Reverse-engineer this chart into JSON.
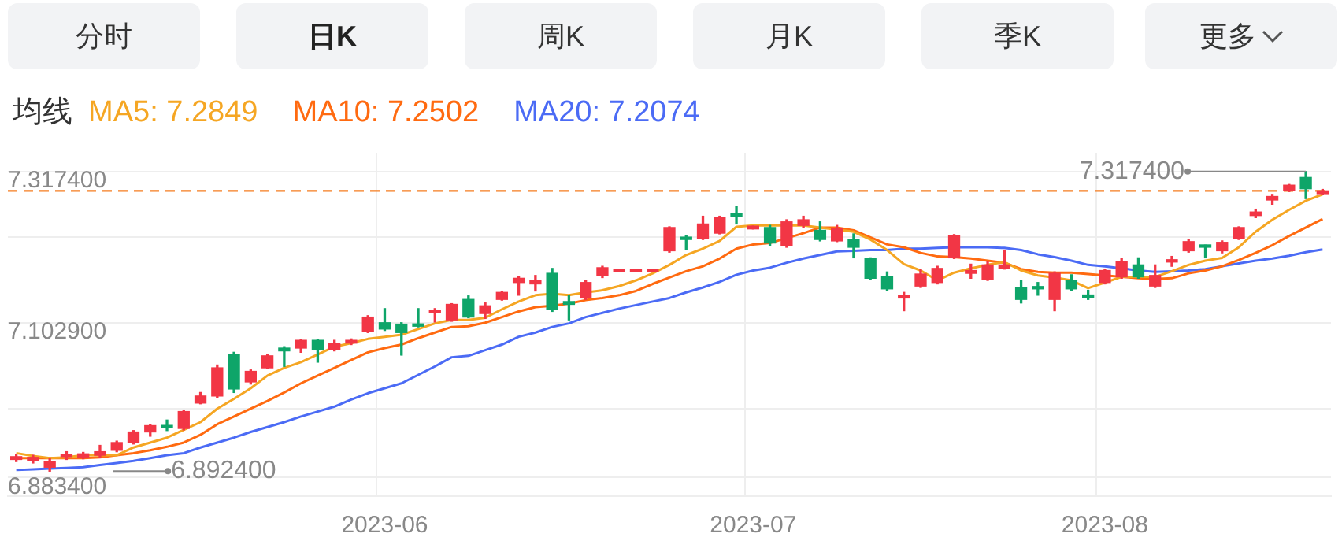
{
  "chart_data": {
    "type": "candlestick",
    "legend_title": "均线",
    "legend": "top left",
    "grid": true,
    "categories": [
      null,
      null,
      null,
      null,
      null,
      null,
      null,
      null,
      null,
      null,
      null,
      null,
      null,
      null,
      null,
      null,
      null,
      null,
      null,
      null,
      null,
      null,
      "2023-06",
      null,
      null,
      null,
      null,
      null,
      null,
      null,
      null,
      null,
      null,
      null,
      null,
      null,
      null,
      null,
      null,
      null,
      null,
      null,
      null,
      null,
      "2023-07",
      null,
      null,
      null,
      null,
      null,
      null,
      null,
      null,
      null,
      null,
      null,
      null,
      null,
      null,
      null,
      null,
      null,
      null,
      null,
      null,
      "2023-08",
      null,
      null,
      null,
      null,
      null,
      null,
      null,
      null,
      null,
      null,
      null,
      null,
      null
    ],
    "ohlc": [
      [
        6.909,
        6.916,
        6.906,
        6.913
      ],
      [
        6.907,
        6.915,
        6.904,
        6.912
      ],
      [
        6.898,
        6.911,
        6.8924,
        6.906
      ],
      [
        6.913,
        6.92,
        6.909,
        6.916
      ],
      [
        6.912,
        6.919,
        6.91,
        6.917
      ],
      [
        6.915,
        6.929,
        6.912,
        6.92
      ],
      [
        6.922,
        6.935,
        6.92,
        6.933
      ],
      [
        6.933,
        6.95,
        6.931,
        6.948
      ],
      [
        6.948,
        6.959,
        6.942,
        6.957
      ],
      [
        6.957,
        6.965,
        6.95,
        6.954
      ],
      [
        6.953,
        6.978,
        6.951,
        6.977
      ],
      [
        6.989,
        7.004,
        6.988,
        6.999
      ],
      [
        6.999,
        7.043,
        6.997,
        7.039
      ],
      [
        7.058,
        7.061,
        7.004,
        7.009
      ],
      [
        7.019,
        7.036,
        7.016,
        7.034
      ],
      [
        7.039,
        7.058,
        7.038,
        7.056
      ],
      [
        7.067,
        7.069,
        7.041,
        7.063
      ],
      [
        7.067,
        7.079,
        7.061,
        7.078
      ],
      [
        7.078,
        7.079,
        7.047,
        7.065
      ],
      [
        7.065,
        7.078,
        7.063,
        7.074
      ],
      [
        7.074,
        7.08,
        7.072,
        7.078
      ],
      [
        7.091,
        7.113,
        7.089,
        7.111
      ],
      [
        7.103,
        7.123,
        7.092,
        7.094
      ],
      [
        7.101,
        7.103,
        7.057,
        7.089
      ],
      [
        7.101,
        7.123,
        7.097,
        7.098
      ],
      [
        7.117,
        7.123,
        7.104,
        7.12
      ],
      [
        7.107,
        7.13,
        7.105,
        7.129
      ],
      [
        7.136,
        7.141,
        7.11,
        7.111
      ],
      [
        7.116,
        7.131,
        7.109,
        7.127
      ],
      [
        7.136,
        7.147,
        7.135,
        7.146
      ],
      [
        7.16,
        7.168,
        7.142,
        7.166
      ],
      [
        7.158,
        7.17,
        7.148,
        7.163
      ],
      [
        7.173,
        7.18,
        7.119,
        7.122
      ],
      [
        7.133,
        7.142,
        7.107,
        7.129
      ],
      [
        7.138,
        7.163,
        7.136,
        7.16
      ],
      [
        7.17,
        7.183,
        7.167,
        7.181
      ],
      [
        7.175,
        7.177,
        7.175,
        7.177
      ],
      [
        7.175,
        7.177,
        7.175,
        7.177
      ],
      [
        7.175,
        7.177,
        7.175,
        7.177
      ],
      [
        7.205,
        7.239,
        7.203,
        7.238
      ],
      [
        7.224,
        7.226,
        7.207,
        7.221
      ],
      [
        7.223,
        7.254,
        7.221,
        7.243
      ],
      [
        7.23,
        7.254,
        7.229,
        7.252
      ],
      [
        7.257,
        7.268,
        7.243,
        7.254
      ],
      [
        7.236,
        7.24,
        7.236,
        7.24
      ],
      [
        7.238,
        7.241,
        7.212,
        7.216
      ],
      [
        7.212,
        7.249,
        7.21,
        7.246
      ],
      [
        7.241,
        7.254,
        7.238,
        7.249
      ],
      [
        7.234,
        7.246,
        7.219,
        7.221
      ],
      [
        7.219,
        7.241,
        7.218,
        7.236
      ],
      [
        7.221,
        7.229,
        7.195,
        7.21
      ],
      [
        7.194,
        7.195,
        7.164,
        7.166
      ],
      [
        7.168,
        7.175,
        7.149,
        7.151
      ],
      [
        7.138,
        7.146,
        7.12,
        7.142
      ],
      [
        7.155,
        7.179,
        7.153,
        7.172
      ],
      [
        7.16,
        7.183,
        7.158,
        7.18
      ],
      [
        7.195,
        7.228,
        7.194,
        7.227
      ],
      [
        7.173,
        7.186,
        7.166,
        7.177
      ],
      [
        7.164,
        7.19,
        7.163,
        7.185
      ],
      [
        7.18,
        7.206,
        7.179,
        7.185
      ],
      [
        7.153,
        7.163,
        7.131,
        7.136
      ],
      [
        7.153,
        7.16,
        7.142,
        7.151
      ],
      [
        7.136,
        7.175,
        7.12,
        7.173
      ],
      [
        7.163,
        7.171,
        7.149,
        7.151
      ],
      [
        7.142,
        7.149,
        7.136,
        7.139
      ],
      [
        7.16,
        7.179,
        7.158,
        7.177
      ],
      [
        7.168,
        7.194,
        7.166,
        7.19
      ],
      [
        7.185,
        7.195,
        7.166,
        7.168
      ],
      [
        7.155,
        7.185,
        7.153,
        7.17
      ],
      [
        7.189,
        7.197,
        7.183,
        7.192
      ],
      [
        7.205,
        7.221,
        7.203,
        7.218
      ],
      [
        7.212,
        7.213,
        7.195,
        7.21
      ],
      [
        7.205,
        7.219,
        7.202,
        7.217
      ],
      [
        7.223,
        7.239,
        7.221,
        7.238
      ],
      [
        7.255,
        7.264,
        7.252,
        7.26
      ],
      [
        7.277,
        7.285,
        7.271,
        7.282
      ],
      [
        7.29,
        7.299,
        7.289,
        7.298
      ],
      [
        7.309,
        7.3174,
        7.279,
        7.293
      ],
      [
        7.286,
        7.292,
        7.285,
        7.29
      ]
    ],
    "colors": [
      "#f23645",
      "#f23645",
      "#f23645",
      "#f23645",
      "#f23645",
      "#f23645",
      "#f23645",
      "#f23645",
      "#f23645",
      "#0ea569",
      "#f23645",
      "#f23645",
      "#f23645",
      "#0ea569",
      "#f23645",
      "#f23645",
      "#0ea569",
      "#f23645",
      "#0ea569",
      "#f23645",
      "#f23645",
      "#f23645",
      "#0ea569",
      "#0ea569",
      "#0ea569",
      "#f23645",
      "#f23645",
      "#0ea569",
      "#f23645",
      "#f23645",
      "#f23645",
      "#f23645",
      "#0ea569",
      "#0ea569",
      "#f23645",
      "#f23645",
      "#f23645",
      "#f23645",
      "#f23645",
      "#f23645",
      "#0ea569",
      "#f23645",
      "#f23645",
      "#0ea569",
      "#f23645",
      "#0ea569",
      "#f23645",
      "#f23645",
      "#0ea569",
      "#f23645",
      "#0ea569",
      "#0ea569",
      "#0ea569",
      "#f23645",
      "#f23645",
      "#f23645",
      "#f23645",
      "#f23645",
      "#f23645",
      "#f23645",
      "#0ea569",
      "#0ea569",
      "#f23645",
      "#0ea569",
      "#0ea569",
      "#f23645",
      "#f23645",
      "#0ea569",
      "#f23645",
      "#f23645",
      "#f23645",
      "#0ea569",
      "#f23645",
      "#f23645",
      "#f23645",
      "#f23645",
      "#f23645",
      "#0ea569",
      "#f23645"
    ],
    "series": [
      {
        "name": "MA5: 7.2849",
        "type": "line",
        "color": "#f5a623",
        "values": [
          6.918,
          6.914,
          6.911,
          6.912,
          6.915,
          6.915,
          6.915,
          6.926,
          6.933,
          6.94,
          6.951,
          6.962,
          6.981,
          6.995,
          7.01,
          7.028,
          7.039,
          7.047,
          7.058,
          7.069,
          7.074,
          7.08,
          7.083,
          7.086,
          7.094,
          7.102,
          7.107,
          7.107,
          7.11,
          7.122,
          7.133,
          7.142,
          7.144,
          7.142,
          7.146,
          7.149,
          7.155,
          7.163,
          7.173,
          7.185,
          7.199,
          7.208,
          7.219,
          7.239,
          7.241,
          7.241,
          7.241,
          7.241,
          7.238,
          7.235,
          7.232,
          7.221,
          7.206,
          7.186,
          7.177,
          7.163,
          7.174,
          7.18,
          7.185,
          7.189,
          7.177,
          7.17,
          7.167,
          7.163,
          7.152,
          7.16,
          7.168,
          7.168,
          7.168,
          7.176,
          7.185,
          7.191,
          7.195,
          7.21,
          7.232,
          7.249,
          7.263,
          7.276,
          7.285
        ]
      },
      {
        "name": "MA10: 7.2502",
        "type": "line",
        "color": "#ff6a10",
        "values": [
          6.911,
          6.911,
          6.911,
          6.911,
          6.911,
          6.912,
          6.915,
          6.918,
          6.922,
          6.927,
          6.933,
          6.944,
          6.959,
          6.97,
          6.981,
          6.992,
          7.004,
          7.017,
          7.028,
          7.039,
          7.05,
          7.061,
          7.067,
          7.072,
          7.081,
          7.089,
          7.097,
          7.098,
          7.103,
          7.111,
          7.119,
          7.125,
          7.127,
          7.13,
          7.135,
          7.138,
          7.142,
          7.148,
          7.158,
          7.167,
          7.176,
          7.183,
          7.194,
          7.208,
          7.214,
          7.216,
          7.223,
          7.23,
          7.238,
          7.238,
          7.234,
          7.224,
          7.214,
          7.21,
          7.202,
          7.197,
          7.196,
          7.194,
          7.191,
          7.188,
          7.179,
          7.175,
          7.174,
          7.174,
          7.172,
          7.17,
          7.168,
          7.166,
          7.165,
          7.166,
          7.173,
          7.177,
          7.183,
          7.192,
          7.202,
          7.213,
          7.226,
          7.238,
          7.25
        ]
      },
      {
        "name": "MA20: 7.2074",
        "type": "line",
        "color": "#4b6bf5",
        "values": [
          6.894,
          6.895,
          6.896,
          6.897,
          6.898,
          6.901,
          6.904,
          6.907,
          6.911,
          6.915,
          6.918,
          6.926,
          6.933,
          6.94,
          6.948,
          6.955,
          6.962,
          6.97,
          6.977,
          6.984,
          6.994,
          7.003,
          7.01,
          7.017,
          7.029,
          7.041,
          7.054,
          7.056,
          7.064,
          7.072,
          7.083,
          7.089,
          7.097,
          7.102,
          7.111,
          7.117,
          7.123,
          7.128,
          7.133,
          7.138,
          7.146,
          7.153,
          7.161,
          7.171,
          7.177,
          7.181,
          7.188,
          7.194,
          7.199,
          7.204,
          7.205,
          7.206,
          7.206,
          7.208,
          7.208,
          7.209,
          7.21,
          7.21,
          7.21,
          7.209,
          7.206,
          7.2,
          7.196,
          7.191,
          7.185,
          7.183,
          7.18,
          7.177,
          7.175,
          7.176,
          7.177,
          7.179,
          7.183,
          7.187,
          7.191,
          7.194,
          7.198,
          7.203,
          7.207
        ]
      }
    ],
    "ylim": [
      6.857,
      7.344
    ],
    "yticks": [
      {
        "value": 7.3174,
        "label": "7.317400"
      },
      {
        "value": 7.225,
        "label": null
      },
      {
        "value": 7.1029,
        "label": "7.102900"
      },
      {
        "value": 6.981,
        "label": null
      },
      {
        "value": 6.8834,
        "label": "6.883400"
      }
    ],
    "ref_lines": [
      {
        "axis": "y",
        "value": 7.29,
        "color": "#f57c1f",
        "line_style": "dashed"
      }
    ],
    "annotations": [
      "分时",
      "日K",
      "周K",
      "月K",
      "季K",
      "更多",
      "7.317400",
      "6.892400"
    ]
  }
}
